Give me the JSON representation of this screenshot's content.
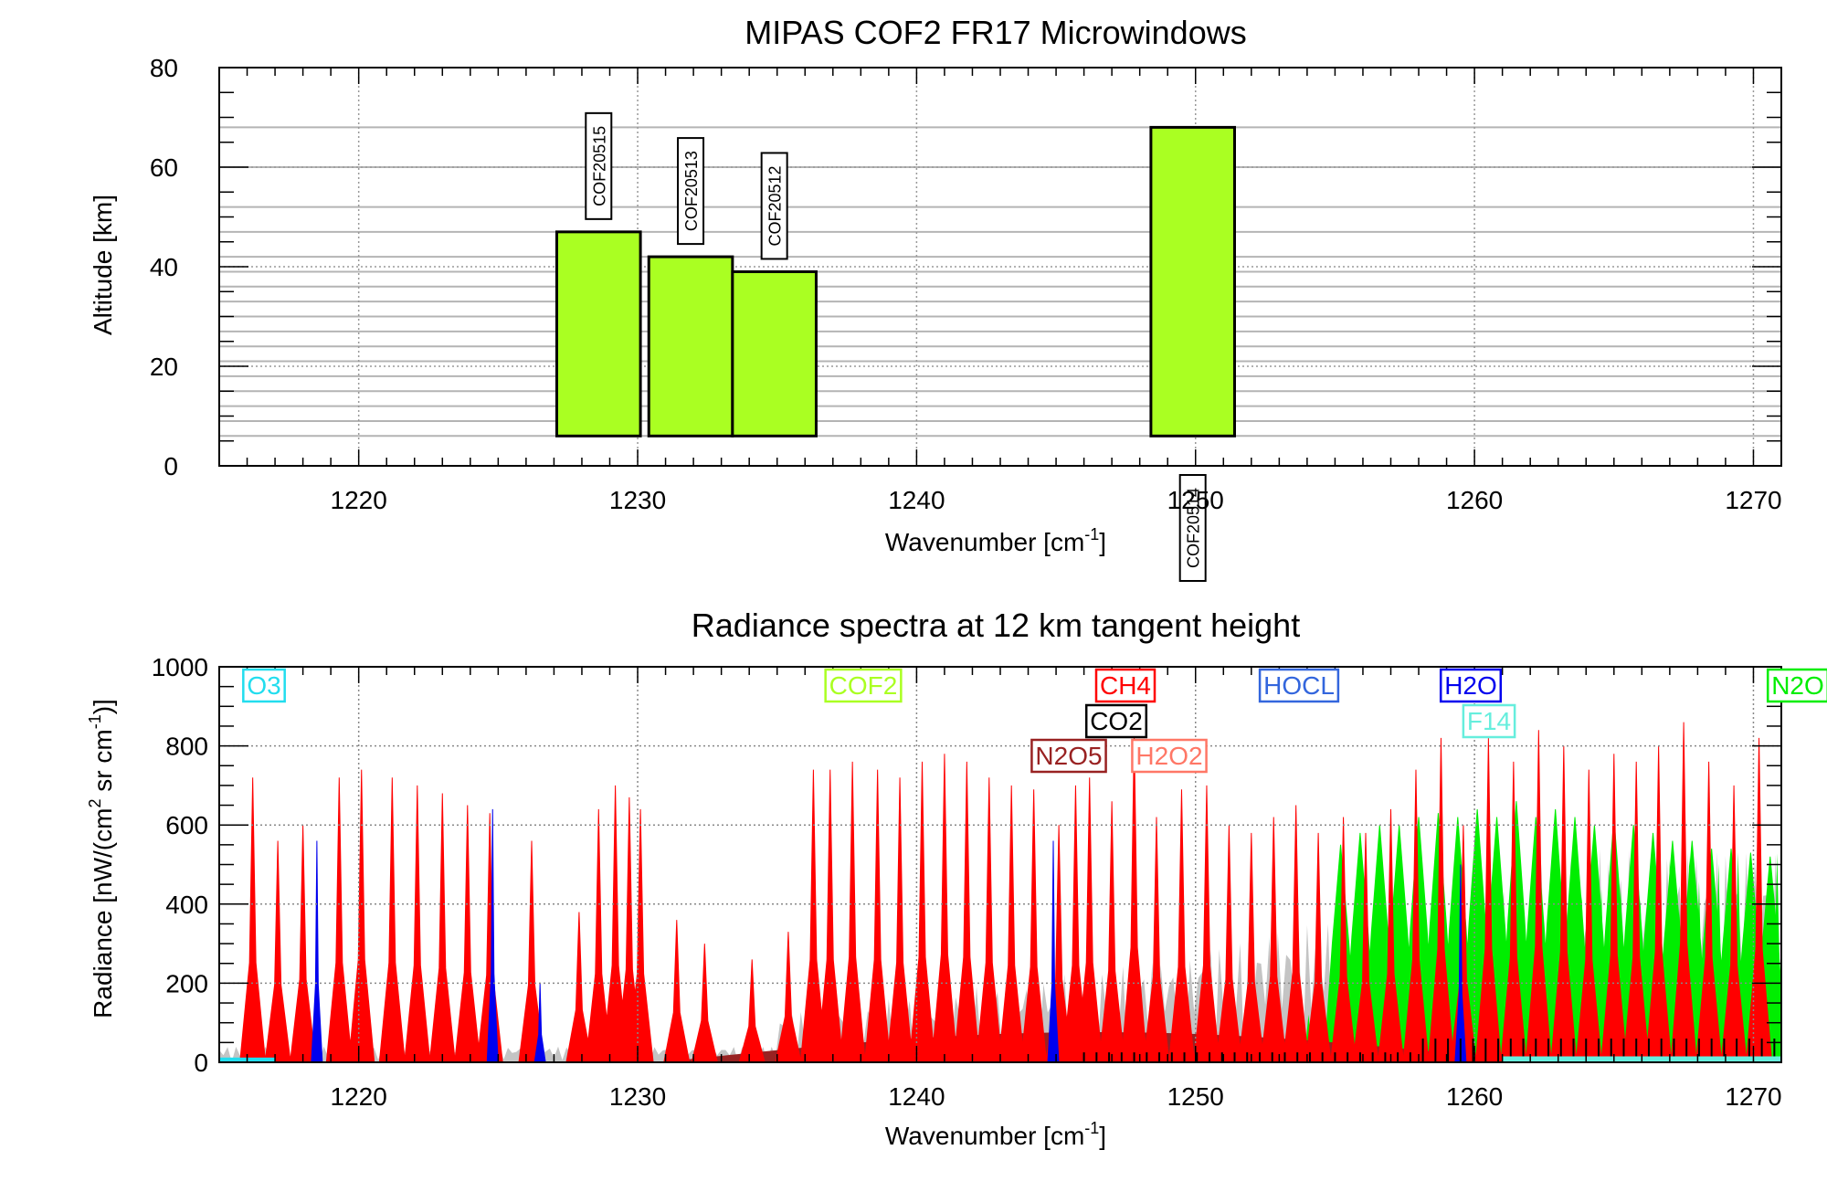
{
  "chart_data": [
    {
      "type": "bar",
      "title": "MIPAS COF2 FR17 Microwindows",
      "xlabel": "Wavenumber [cm",
      "xlabel_sup": "-1",
      "xlabel_end": "]",
      "ylabel": "Altitude [km]",
      "xlim": [
        1215,
        1271
      ],
      "ylim": [
        0,
        80
      ],
      "xticks": [
        1220,
        1230,
        1240,
        1250,
        1260,
        1270
      ],
      "yticks": [
        0,
        20,
        40,
        60,
        80
      ],
      "grid": true,
      "altitude_levels": [
        6,
        9,
        12,
        15,
        18,
        21,
        24,
        27,
        30,
        33,
        36,
        39,
        42,
        47,
        52,
        60,
        68
      ],
      "bar_color": "#aaff22",
      "microwindows": [
        {
          "name": "COF20515",
          "x0": 1227.1,
          "x1": 1230.1,
          "alt_bottom": 6,
          "alt_top": 47,
          "label_position": "top"
        },
        {
          "name": "COF20513",
          "x0": 1230.4,
          "x1": 1233.4,
          "alt_bottom": 6,
          "alt_top": 42,
          "label_position": "top"
        },
        {
          "name": "COF20512",
          "x0": 1233.4,
          "x1": 1236.4,
          "alt_bottom": 6,
          "alt_top": 39,
          "label_position": "top"
        },
        {
          "name": "COF20514",
          "x0": 1248.4,
          "x1": 1251.4,
          "alt_bottom": 6,
          "alt_top": 68,
          "label_position": "below"
        }
      ]
    },
    {
      "type": "area",
      "title": "Radiance spectra at 12 km tangent height",
      "xlabel": "Wavenumber [cm",
      "xlabel_sup": "-1",
      "xlabel_end": "]",
      "ylabel": "Radiance [nW/(cm",
      "ylabel_sup1": "2",
      "ylabel_mid": " sr cm",
      "ylabel_sup2": "-1",
      "ylabel_end": ")]",
      "xlim": [
        1215,
        1271
      ],
      "ylim": [
        0,
        1000
      ],
      "xticks": [
        1220,
        1230,
        1240,
        1250,
        1260,
        1270
      ],
      "yticks": [
        0,
        200,
        400,
        600,
        800,
        1000
      ],
      "grid": true,
      "series": [
        {
          "name": "O3",
          "color": "#22ddee"
        },
        {
          "name": "COF2",
          "color": "#aaff22"
        },
        {
          "name": "CH4",
          "color": "#ff0000"
        },
        {
          "name": "CO2",
          "color": "#000000"
        },
        {
          "name": "N2O5",
          "color": "#992222"
        },
        {
          "name": "H2O2",
          "color": "#ff7766"
        },
        {
          "name": "HOCL",
          "color": "#3366dd"
        },
        {
          "name": "H2O",
          "color": "#0000ee"
        },
        {
          "name": "F14",
          "color": "#66eedd"
        },
        {
          "name": "N2O",
          "color": "#00ee00"
        }
      ],
      "background_total_color": "#c4c4c4",
      "ch4_lines": [
        {
          "x": 1216.2,
          "y": 720
        },
        {
          "x": 1217.1,
          "y": 560
        },
        {
          "x": 1218.0,
          "y": 600
        },
        {
          "x": 1219.3,
          "y": 720
        },
        {
          "x": 1220.1,
          "y": 740
        },
        {
          "x": 1221.2,
          "y": 720
        },
        {
          "x": 1222.1,
          "y": 700
        },
        {
          "x": 1223.0,
          "y": 680
        },
        {
          "x": 1223.9,
          "y": 650
        },
        {
          "x": 1224.7,
          "y": 630
        },
        {
          "x": 1226.2,
          "y": 560
        },
        {
          "x": 1227.9,
          "y": 380
        },
        {
          "x": 1228.6,
          "y": 640
        },
        {
          "x": 1229.2,
          "y": 700
        },
        {
          "x": 1229.7,
          "y": 670
        },
        {
          "x": 1230.1,
          "y": 640
        },
        {
          "x": 1231.4,
          "y": 360
        },
        {
          "x": 1232.4,
          "y": 300
        },
        {
          "x": 1234.1,
          "y": 260
        },
        {
          "x": 1235.4,
          "y": 330
        },
        {
          "x": 1236.3,
          "y": 740
        },
        {
          "x": 1236.9,
          "y": 740
        },
        {
          "x": 1237.7,
          "y": 760
        },
        {
          "x": 1238.6,
          "y": 740
        },
        {
          "x": 1239.4,
          "y": 720
        },
        {
          "x": 1240.2,
          "y": 760
        },
        {
          "x": 1241.0,
          "y": 780
        },
        {
          "x": 1241.8,
          "y": 760
        },
        {
          "x": 1242.6,
          "y": 720
        },
        {
          "x": 1243.4,
          "y": 700
        },
        {
          "x": 1244.2,
          "y": 690
        },
        {
          "x": 1245.1,
          "y": 600
        },
        {
          "x": 1245.7,
          "y": 700
        },
        {
          "x": 1246.2,
          "y": 720
        },
        {
          "x": 1247.0,
          "y": 660
        },
        {
          "x": 1247.8,
          "y": 830
        },
        {
          "x": 1248.6,
          "y": 620
        },
        {
          "x": 1249.5,
          "y": 690
        },
        {
          "x": 1250.4,
          "y": 700
        },
        {
          "x": 1251.2,
          "y": 600
        },
        {
          "x": 1252.0,
          "y": 580
        },
        {
          "x": 1252.8,
          "y": 620
        },
        {
          "x": 1253.6,
          "y": 650
        },
        {
          "x": 1254.4,
          "y": 580
        },
        {
          "x": 1255.3,
          "y": 620
        },
        {
          "x": 1256.1,
          "y": 580
        },
        {
          "x": 1257.0,
          "y": 640
        },
        {
          "x": 1257.9,
          "y": 740
        },
        {
          "x": 1258.8,
          "y": 820
        },
        {
          "x": 1259.6,
          "y": 600
        },
        {
          "x": 1260.5,
          "y": 820
        },
        {
          "x": 1261.4,
          "y": 760
        },
        {
          "x": 1262.3,
          "y": 840
        },
        {
          "x": 1263.2,
          "y": 800
        },
        {
          "x": 1264.1,
          "y": 740
        },
        {
          "x": 1265.0,
          "y": 780
        },
        {
          "x": 1265.8,
          "y": 760
        },
        {
          "x": 1266.6,
          "y": 800
        },
        {
          "x": 1267.5,
          "y": 860
        },
        {
          "x": 1268.4,
          "y": 760
        },
        {
          "x": 1269.3,
          "y": 700
        },
        {
          "x": 1270.2,
          "y": 820
        }
      ],
      "h2o_lines": [
        {
          "x": 1218.5,
          "y": 560
        },
        {
          "x": 1224.8,
          "y": 640
        },
        {
          "x": 1226.5,
          "y": 200
        },
        {
          "x": 1244.9,
          "y": 560
        },
        {
          "x": 1259.5,
          "y": 500
        }
      ],
      "n2o_lines": [
        {
          "x": 1255.2,
          "y": 550
        },
        {
          "x": 1255.9,
          "y": 580
        },
        {
          "x": 1256.6,
          "y": 600
        },
        {
          "x": 1257.3,
          "y": 600
        },
        {
          "x": 1258.0,
          "y": 620
        },
        {
          "x": 1258.7,
          "y": 630
        },
        {
          "x": 1259.4,
          "y": 620
        },
        {
          "x": 1260.1,
          "y": 640
        },
        {
          "x": 1260.8,
          "y": 620
        },
        {
          "x": 1261.5,
          "y": 660
        },
        {
          "x": 1262.2,
          "y": 620
        },
        {
          "x": 1262.9,
          "y": 640
        },
        {
          "x": 1263.6,
          "y": 620
        },
        {
          "x": 1264.3,
          "y": 600
        },
        {
          "x": 1265.0,
          "y": 620
        },
        {
          "x": 1265.7,
          "y": 600
        },
        {
          "x": 1266.4,
          "y": 580
        },
        {
          "x": 1267.1,
          "y": 560
        },
        {
          "x": 1267.8,
          "y": 560
        },
        {
          "x": 1268.5,
          "y": 540
        },
        {
          "x": 1269.2,
          "y": 540
        },
        {
          "x": 1269.9,
          "y": 530
        },
        {
          "x": 1270.6,
          "y": 520
        }
      ],
      "n2o5_band": {
        "x0": 1231.0,
        "x1": 1262.0,
        "peak_x": 1246.0,
        "peak_y": 75
      }
    }
  ]
}
